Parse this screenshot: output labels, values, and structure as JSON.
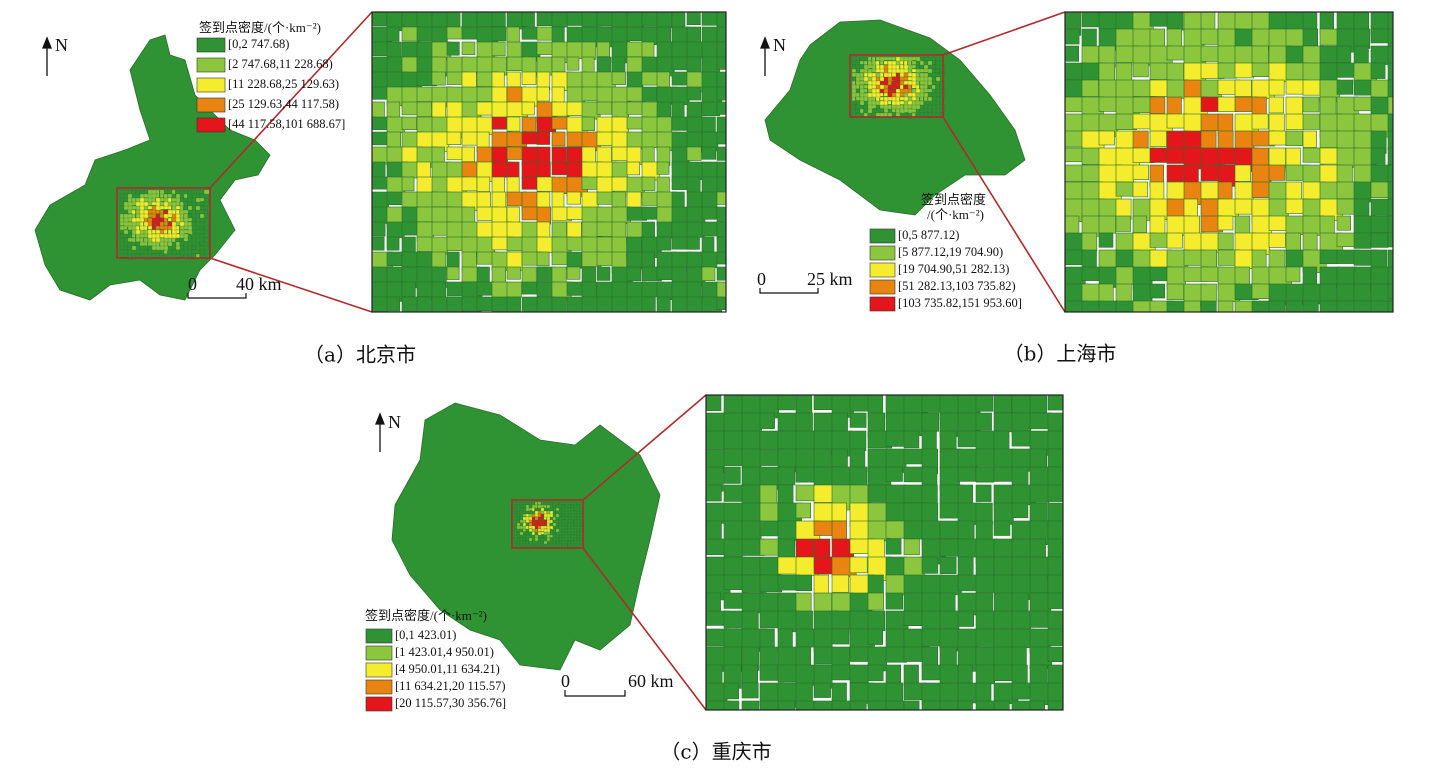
{
  "panels": [
    {
      "caption": "（a）北京市",
      "north": "N",
      "scale": {
        "start": "0",
        "end": "40 km"
      },
      "legend": {
        "title": [
          "签到点密度/(个·km⁻²)"
        ],
        "items": [
          "[0,2 747.68)",
          "[2 747.68,11 228.68)",
          "[11 228.68,25 129.63)",
          "[25 129.63,44 117.58)",
          "[44 117.58,101 688.67]"
        ]
      }
    },
    {
      "caption": "（b）上海市",
      "north": "N",
      "scale": {
        "start": "0",
        "end": "25 km"
      },
      "legend": {
        "title": [
          "签到点密度",
          "/(个·km⁻²)"
        ],
        "items": [
          "[0,5 877.12)",
          "[5 877.12,19 704.90)",
          "[19 704.90,51 282.13)",
          "[51 282.13,103 735.82)",
          "[103 735.82,151 953.60]"
        ]
      }
    },
    {
      "caption": "（c）重庆市",
      "north": "N",
      "scale": {
        "start": "0",
        "end": "60 km"
      },
      "legend": {
        "title": [
          "签到点密度/(个·km⁻²)"
        ],
        "items": [
          "[0,1 423.01)",
          "[1 423.01,4 950.01)",
          "[4 950.01,11 634.21)",
          "[11 634.21,20 115.57)",
          "[20 115.57,30 356.76]"
        ]
      }
    }
  ]
}
